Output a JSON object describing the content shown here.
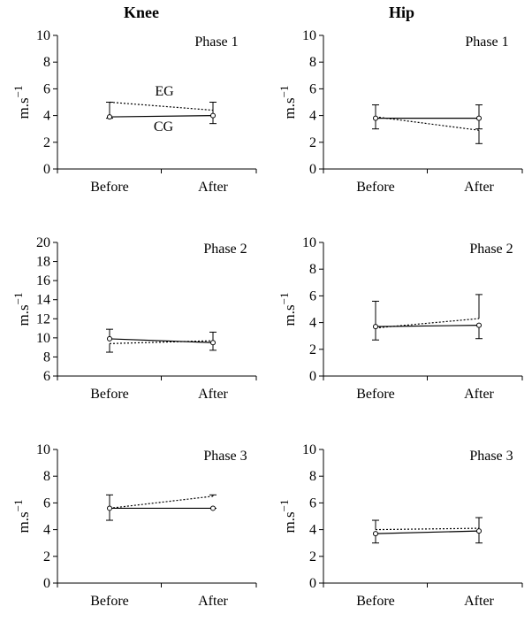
{
  "columns": {
    "knee": "Knee",
    "hip": "Hip"
  },
  "chart_data": [
    {
      "type": "line",
      "column": "Knee",
      "panel_label": "Phase 1",
      "categories": [
        "Before",
        "After"
      ],
      "ylabel": "m.s−1",
      "ylim": [
        0,
        10
      ],
      "yticks": [
        0,
        2,
        4,
        6,
        8,
        10
      ],
      "series": [
        {
          "name": "EG",
          "style": "dotted",
          "values": [
            5.0,
            4.4
          ],
          "err_upper": [
            null,
            null
          ],
          "err_lower": [
            null,
            null
          ]
        },
        {
          "name": "CG",
          "style": "solid",
          "values": [
            3.9,
            4.0
          ],
          "err_upper": [
            5.0,
            5.0
          ],
          "err_lower": [
            3.8,
            3.4
          ]
        }
      ]
    },
    {
      "type": "line",
      "column": "Hip",
      "panel_label": "Phase 1",
      "categories": [
        "Before",
        "After"
      ],
      "ylabel": "m.s−1",
      "ylim": [
        0,
        10
      ],
      "yticks": [
        0,
        2,
        4,
        6,
        8,
        10
      ],
      "series": [
        {
          "name": "",
          "style": "dotted",
          "values": [
            3.9,
            2.9
          ],
          "err_upper": [
            null,
            null
          ],
          "err_lower": [
            null,
            1.9
          ]
        },
        {
          "name": "",
          "style": "solid",
          "values": [
            3.8,
            3.8
          ],
          "err_upper": [
            4.8,
            4.8
          ],
          "err_lower": [
            3.0,
            3.0
          ]
        }
      ]
    },
    {
      "type": "line",
      "column": "Knee",
      "panel_label": "Phase 2",
      "categories": [
        "Before",
        "After"
      ],
      "ylabel": "m.s−1",
      "ylim": [
        6,
        20
      ],
      "yticks": [
        6,
        8,
        10,
        12,
        14,
        16,
        18,
        20
      ],
      "series": [
        {
          "name": "",
          "style": "dotted",
          "values": [
            9.4,
            9.7
          ],
          "err_upper": [
            null,
            null
          ],
          "err_lower": [
            8.5,
            8.7
          ]
        },
        {
          "name": "",
          "style": "solid",
          "values": [
            9.9,
            9.5
          ],
          "err_upper": [
            10.9,
            10.6
          ],
          "err_lower": [
            null,
            null
          ]
        }
      ]
    },
    {
      "type": "line",
      "column": "Hip",
      "panel_label": "Phase 2",
      "categories": [
        "Before",
        "After"
      ],
      "ylabel": "m.s−1",
      "ylim": [
        0,
        10
      ],
      "yticks": [
        0,
        2,
        4,
        6,
        8,
        10
      ],
      "series": [
        {
          "name": "",
          "style": "dotted",
          "values": [
            3.6,
            4.3
          ],
          "err_upper": [
            5.6,
            6.1
          ],
          "err_lower": [
            null,
            null
          ]
        },
        {
          "name": "",
          "style": "solid",
          "values": [
            3.7,
            3.8
          ],
          "err_upper": [
            null,
            null
          ],
          "err_lower": [
            2.7,
            2.8
          ]
        }
      ]
    },
    {
      "type": "line",
      "column": "Knee",
      "panel_label": "Phase 3",
      "categories": [
        "Before",
        "After"
      ],
      "ylabel": "m.s−1",
      "ylim": [
        0,
        10
      ],
      "yticks": [
        0,
        2,
        4,
        6,
        8,
        10
      ],
      "series": [
        {
          "name": "",
          "style": "dotted",
          "values": [
            5.6,
            6.5
          ],
          "err_upper": [
            6.6,
            6.6
          ],
          "err_lower": [
            null,
            null
          ]
        },
        {
          "name": "",
          "style": "solid",
          "values": [
            5.6,
            5.6
          ],
          "err_upper": [
            null,
            null
          ],
          "err_lower": [
            4.7,
            5.6
          ]
        }
      ]
    },
    {
      "type": "line",
      "column": "Hip",
      "panel_label": "Phase 3",
      "categories": [
        "Before",
        "After"
      ],
      "ylabel": "m.s−1",
      "ylim": [
        0,
        10
      ],
      "yticks": [
        0,
        2,
        4,
        6,
        8,
        10
      ],
      "series": [
        {
          "name": "",
          "style": "dotted",
          "values": [
            4.0,
            4.1
          ],
          "err_upper": [
            4.7,
            4.9
          ],
          "err_lower": [
            null,
            null
          ]
        },
        {
          "name": "",
          "style": "solid",
          "values": [
            3.7,
            3.9
          ],
          "err_upper": [
            null,
            null
          ],
          "err_lower": [
            3.0,
            3.0
          ]
        }
      ]
    }
  ]
}
